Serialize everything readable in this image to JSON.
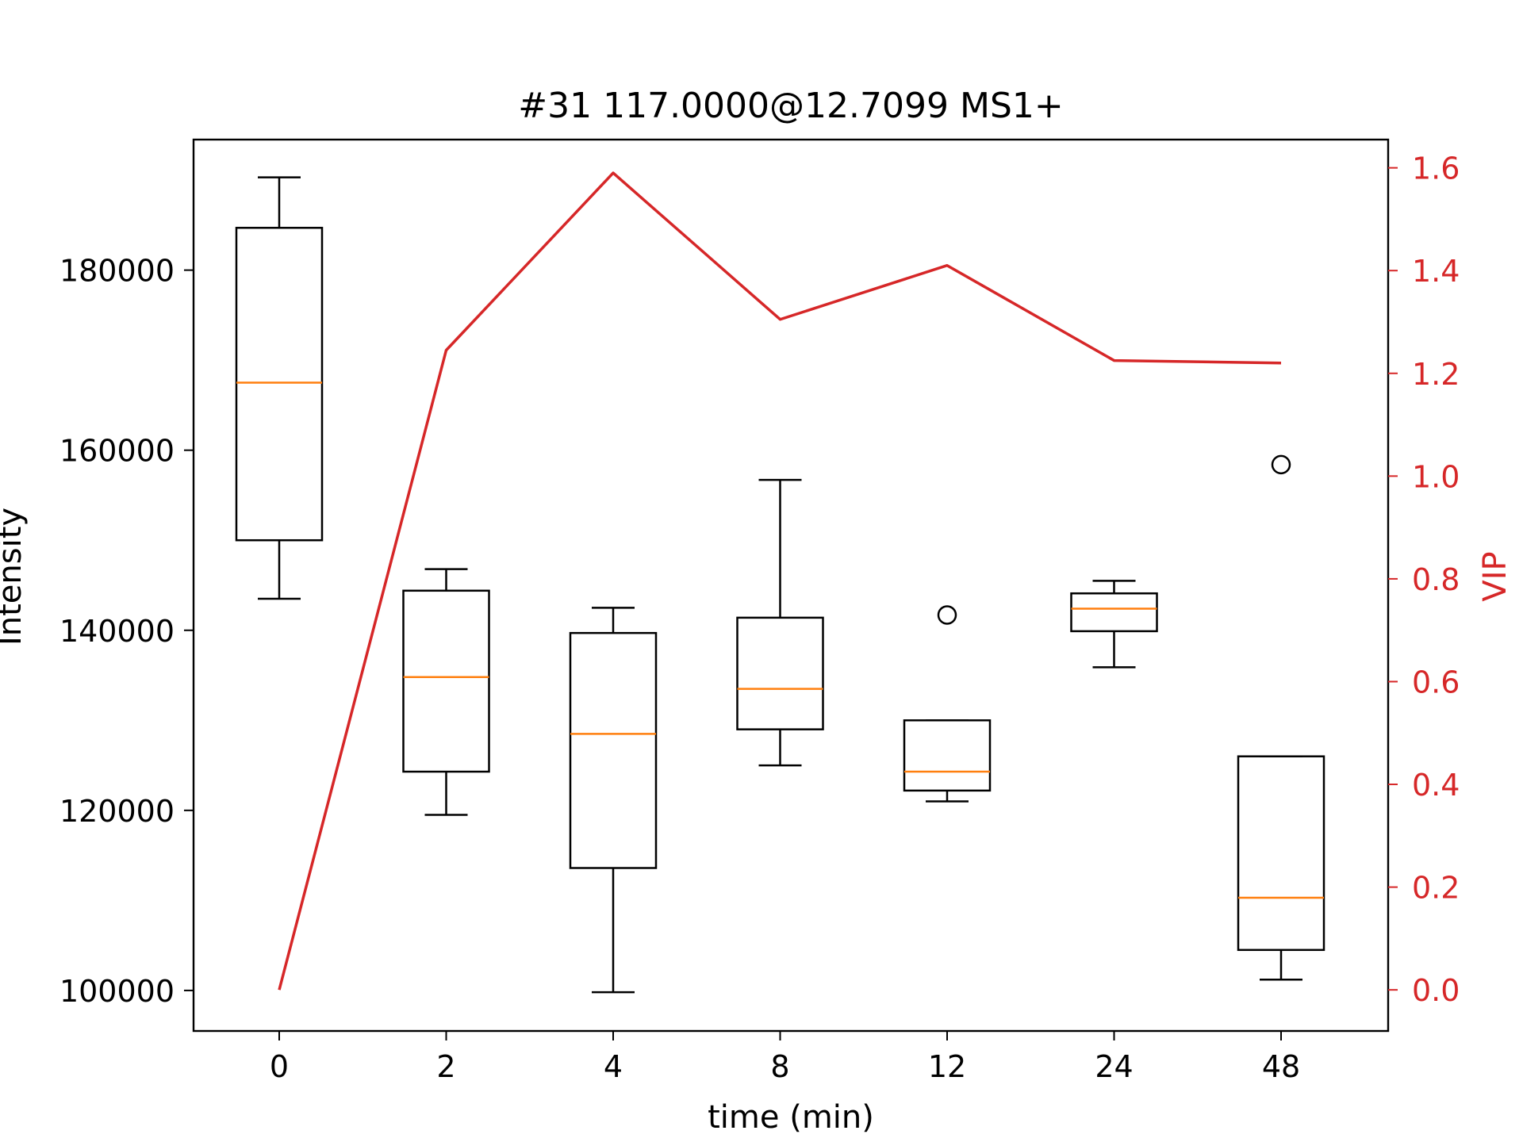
{
  "chart_data": {
    "type": "box",
    "title": "#31 117.0000@12.7099 MS1+",
    "xlabel": "time (min)",
    "ylabel": "Intensity",
    "y2label": "VIP",
    "categories": [
      "0",
      "2",
      "4",
      "8",
      "12",
      "24",
      "48"
    ],
    "ylim": [
      95500,
      194500
    ],
    "yticks": [
      100000,
      120000,
      140000,
      160000,
      180000
    ],
    "y2lim": [
      -0.08,
      1.655
    ],
    "y2ticks": [
      "0.0",
      "0.2",
      "0.4",
      "0.6",
      "0.8",
      "1.0",
      "1.2",
      "1.4",
      "1.6"
    ],
    "boxes": [
      {
        "category": "0",
        "whisker_low": 143500,
        "q1": 150000,
        "median": 167500,
        "q3": 184700,
        "whisker_high": 190300,
        "outliers": []
      },
      {
        "category": "2",
        "whisker_low": 119500,
        "q1": 124300,
        "median": 134800,
        "q3": 144400,
        "whisker_high": 146800,
        "outliers": []
      },
      {
        "category": "4",
        "whisker_low": 99800,
        "q1": 113600,
        "median": 128500,
        "q3": 139700,
        "whisker_high": 142500,
        "outliers": []
      },
      {
        "category": "8",
        "whisker_low": 125000,
        "q1": 129000,
        "median": 133500,
        "q3": 141400,
        "whisker_high": 156700,
        "outliers": []
      },
      {
        "category": "12",
        "whisker_low": 121000,
        "q1": 122200,
        "median": 124300,
        "q3": 130000,
        "whisker_high": 130000,
        "outliers": [
          141700
        ]
      },
      {
        "category": "24",
        "whisker_low": 135900,
        "q1": 139900,
        "median": 142400,
        "q3": 144100,
        "whisker_high": 145500,
        "outliers": []
      },
      {
        "category": "48",
        "whisker_low": 101200,
        "q1": 104500,
        "median": 110300,
        "q3": 126000,
        "whisker_high": 126000,
        "outliers": [
          158400
        ]
      }
    ],
    "vip_series": {
      "values": [
        0.0,
        1.245,
        1.59,
        1.305,
        1.41,
        1.225,
        1.22
      ]
    },
    "colors": {
      "box": "#000000",
      "median": "#ff7f0e",
      "vip_line": "#d62728",
      "vip_axis": "#d62728"
    }
  }
}
